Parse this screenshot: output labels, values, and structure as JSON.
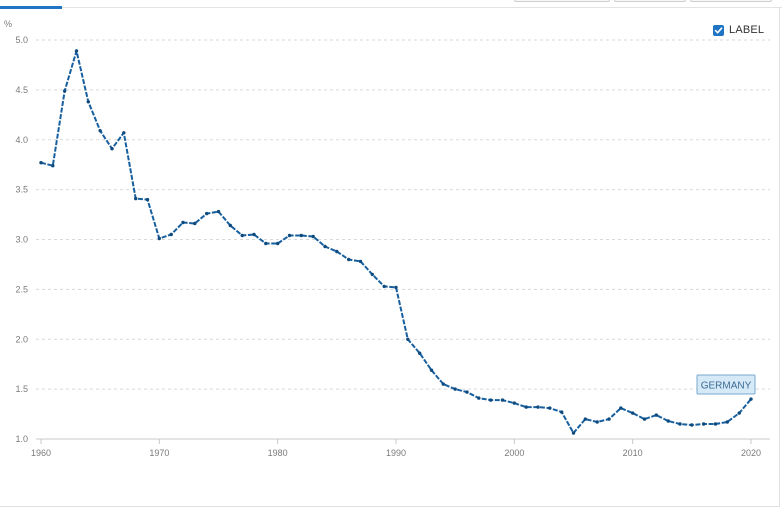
{
  "toolbar": {
    "label_toggle": "LABEL",
    "label_checked": true
  },
  "chart_data": {
    "type": "line",
    "ylabel": "%",
    "xlabel": "",
    "xlim": [
      1960,
      2020
    ],
    "ylim": [
      1.0,
      5.0
    ],
    "x_ticks": [
      1960,
      1970,
      1980,
      1990,
      2000,
      2010,
      2020
    ],
    "y_ticks": [
      "1.0",
      "1.5",
      "2.0",
      "2.5",
      "3.0",
      "3.5",
      "4.0",
      "4.5",
      "5.0"
    ],
    "grid": true,
    "x": [
      1960,
      1961,
      1962,
      1963,
      1964,
      1965,
      1966,
      1967,
      1968,
      1969,
      1970,
      1971,
      1972,
      1973,
      1974,
      1975,
      1976,
      1977,
      1978,
      1979,
      1980,
      1981,
      1982,
      1983,
      1984,
      1985,
      1986,
      1987,
      1988,
      1989,
      1990,
      1991,
      1992,
      1993,
      1994,
      1995,
      1996,
      1997,
      1998,
      1999,
      2000,
      2001,
      2002,
      2003,
      2004,
      2005,
      2006,
      2007,
      2008,
      2009,
      2010,
      2011,
      2012,
      2013,
      2014,
      2015,
      2016,
      2017,
      2018,
      2019,
      2020
    ],
    "series": [
      {
        "name": "GERMANY",
        "color": "#175f9e",
        "values": [
          3.77,
          3.74,
          4.49,
          4.89,
          4.38,
          4.09,
          3.91,
          4.07,
          3.41,
          3.4,
          3.01,
          3.05,
          3.17,
          3.16,
          3.26,
          3.28,
          3.14,
          3.04,
          3.05,
          2.96,
          2.96,
          3.04,
          3.04,
          3.03,
          2.93,
          2.88,
          2.8,
          2.78,
          2.65,
          2.53,
          2.52,
          2.0,
          1.86,
          1.69,
          1.55,
          1.5,
          1.47,
          1.41,
          1.39,
          1.39,
          1.36,
          1.32,
          1.32,
          1.31,
          1.27,
          1.06,
          1.2,
          1.17,
          1.2,
          1.31,
          1.26,
          1.2,
          1.24,
          1.18,
          1.15,
          1.14,
          1.15,
          1.15,
          1.17,
          1.26,
          1.4
        ]
      }
    ]
  }
}
